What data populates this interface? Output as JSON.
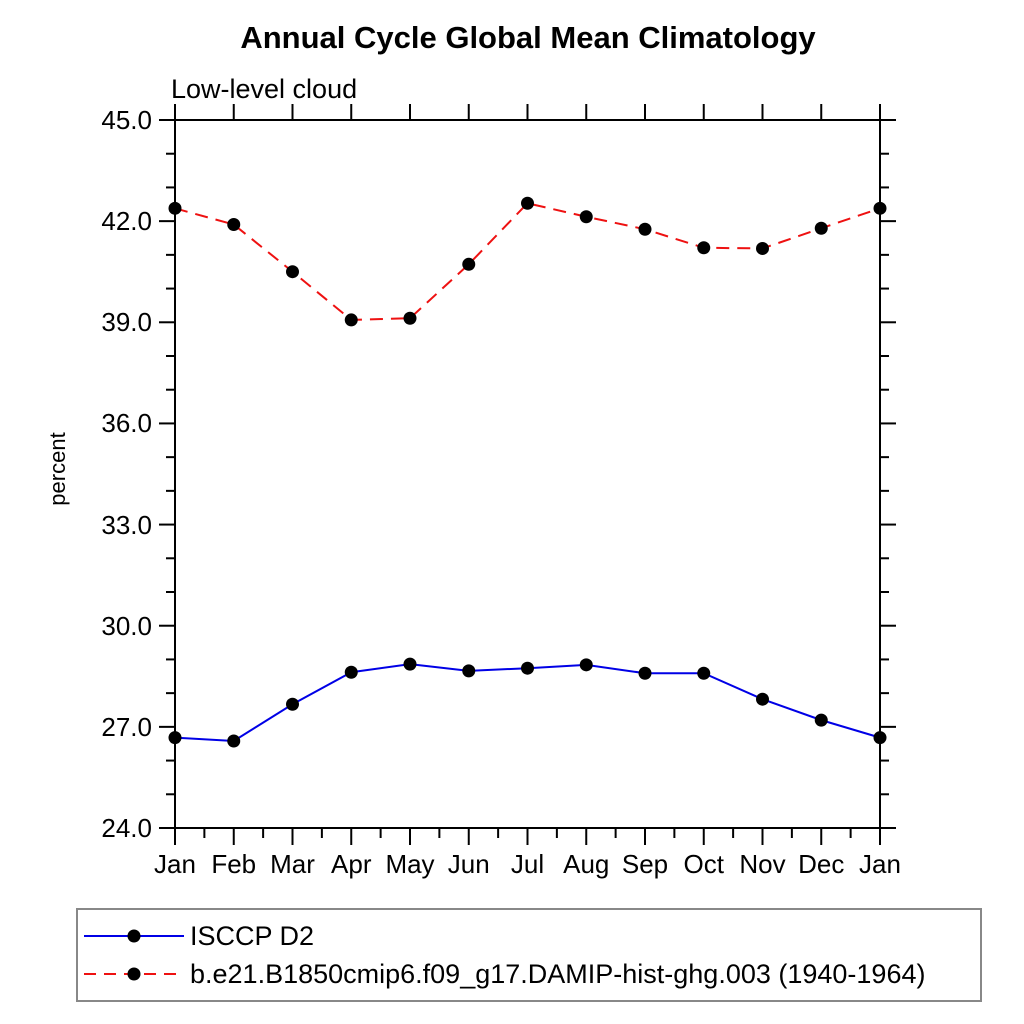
{
  "title": "Annual Cycle Global Mean Climatology",
  "subtitle": "Low-level cloud",
  "y_axis": {
    "label": "percent",
    "min": 24.0,
    "max": 45.0,
    "major_step": 3.0,
    "minor_step": 1.0,
    "tick_labels": [
      "24.0",
      "27.0",
      "30.0",
      "33.0",
      "36.0",
      "39.0",
      "42.0",
      "45.0"
    ]
  },
  "x_axis": {
    "labels": [
      "Jan",
      "Feb",
      "Mar",
      "Apr",
      "May",
      "Jun",
      "Jul",
      "Aug",
      "Sep",
      "Oct",
      "Nov",
      "Dec",
      "Jan"
    ]
  },
  "legend": [
    {
      "label": "ISCCP D2",
      "color": "#0000e6",
      "style": "solid",
      "marker_color": "#000000"
    },
    {
      "label": "b.e21.B1850cmip6.f09_g17.DAMIP-hist-ghg.003 (1940-1964)",
      "color": "#ee1111",
      "style": "dashed",
      "marker_color": "#000000"
    }
  ],
  "colors": {
    "frame": "#000000",
    "marker": "#000000",
    "legend_border": "#888888",
    "background": "#ffffff"
  },
  "chart_data": {
    "type": "line",
    "title": "Annual Cycle Global Mean Climatology",
    "subtitle": "Low-level cloud",
    "xlabel": "",
    "ylabel": "percent",
    "ylim": [
      24.0,
      45.0
    ],
    "y_major_step": 3.0,
    "y_minor_step": 1.0,
    "grid": false,
    "legend_position": "bottom",
    "categories": [
      "Jan",
      "Feb",
      "Mar",
      "Apr",
      "May",
      "Jun",
      "Jul",
      "Aug",
      "Sep",
      "Oct",
      "Nov",
      "Dec",
      "Jan"
    ],
    "series": [
      {
        "name": "ISCCP D2",
        "color": "#0000e6",
        "line_style": "solid",
        "marker": "circle",
        "marker_color": "#000000",
        "values": [
          26.68,
          26.58,
          27.67,
          28.62,
          28.86,
          28.66,
          28.74,
          28.84,
          28.59,
          28.59,
          27.82,
          27.2,
          26.68
        ]
      },
      {
        "name": "b.e21.B1850cmip6.f09_g17.DAMIP-hist-ghg.003 (1940-1964)",
        "color": "#ee1111",
        "line_style": "dashed",
        "marker": "circle",
        "marker_color": "#000000",
        "values": [
          42.38,
          41.9,
          40.5,
          39.07,
          39.12,
          40.72,
          42.53,
          42.13,
          41.76,
          41.21,
          41.19,
          41.79,
          42.38
        ]
      }
    ]
  }
}
